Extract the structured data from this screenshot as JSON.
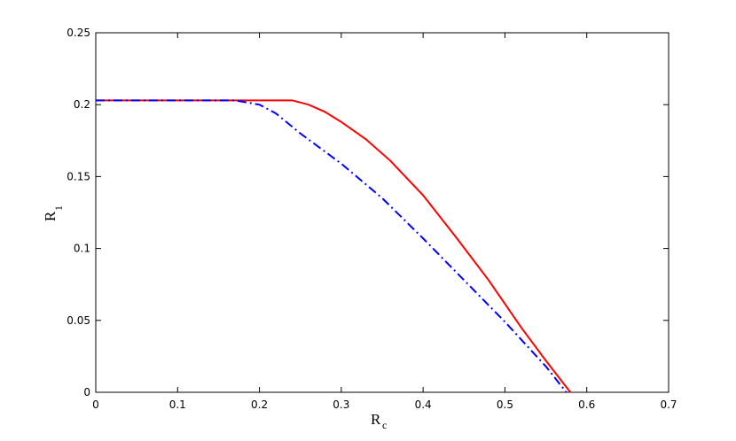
{
  "chart_data": {
    "type": "line",
    "xlabel": "R",
    "xlabel_sub": "c",
    "ylabel": "R",
    "ylabel_sub": "1",
    "xlim": [
      0,
      0.7
    ],
    "xticks": [
      0,
      0.1,
      0.2,
      0.3,
      0.4,
      0.5,
      0.6,
      0.7
    ],
    "ylim": [
      0,
      0.25
    ],
    "yticks": [
      0,
      0.05,
      0.1,
      0.15,
      0.2,
      0.25
    ],
    "grid": false,
    "series": [
      {
        "color": "#ff0000",
        "style": "solid",
        "x": [
          0,
          0.24,
          0.26,
          0.28,
          0.3,
          0.33,
          0.36,
          0.4,
          0.44,
          0.48,
          0.52,
          0.55,
          0.58
        ],
        "values": [
          0.203,
          0.203,
          0.2,
          0.195,
          0.188,
          0.176,
          0.161,
          0.137,
          0.108,
          0.078,
          0.045,
          0.022,
          0
        ]
      },
      {
        "color": "#0000ff",
        "style": "dashdot",
        "x": [
          0,
          0.17,
          0.2,
          0.22,
          0.25,
          0.3,
          0.35,
          0.4,
          0.45,
          0.5,
          0.55,
          0.575
        ],
        "values": [
          0.203,
          0.203,
          0.2,
          0.194,
          0.18,
          0.159,
          0.135,
          0.107,
          0.078,
          0.049,
          0.018,
          0
        ]
      }
    ]
  }
}
